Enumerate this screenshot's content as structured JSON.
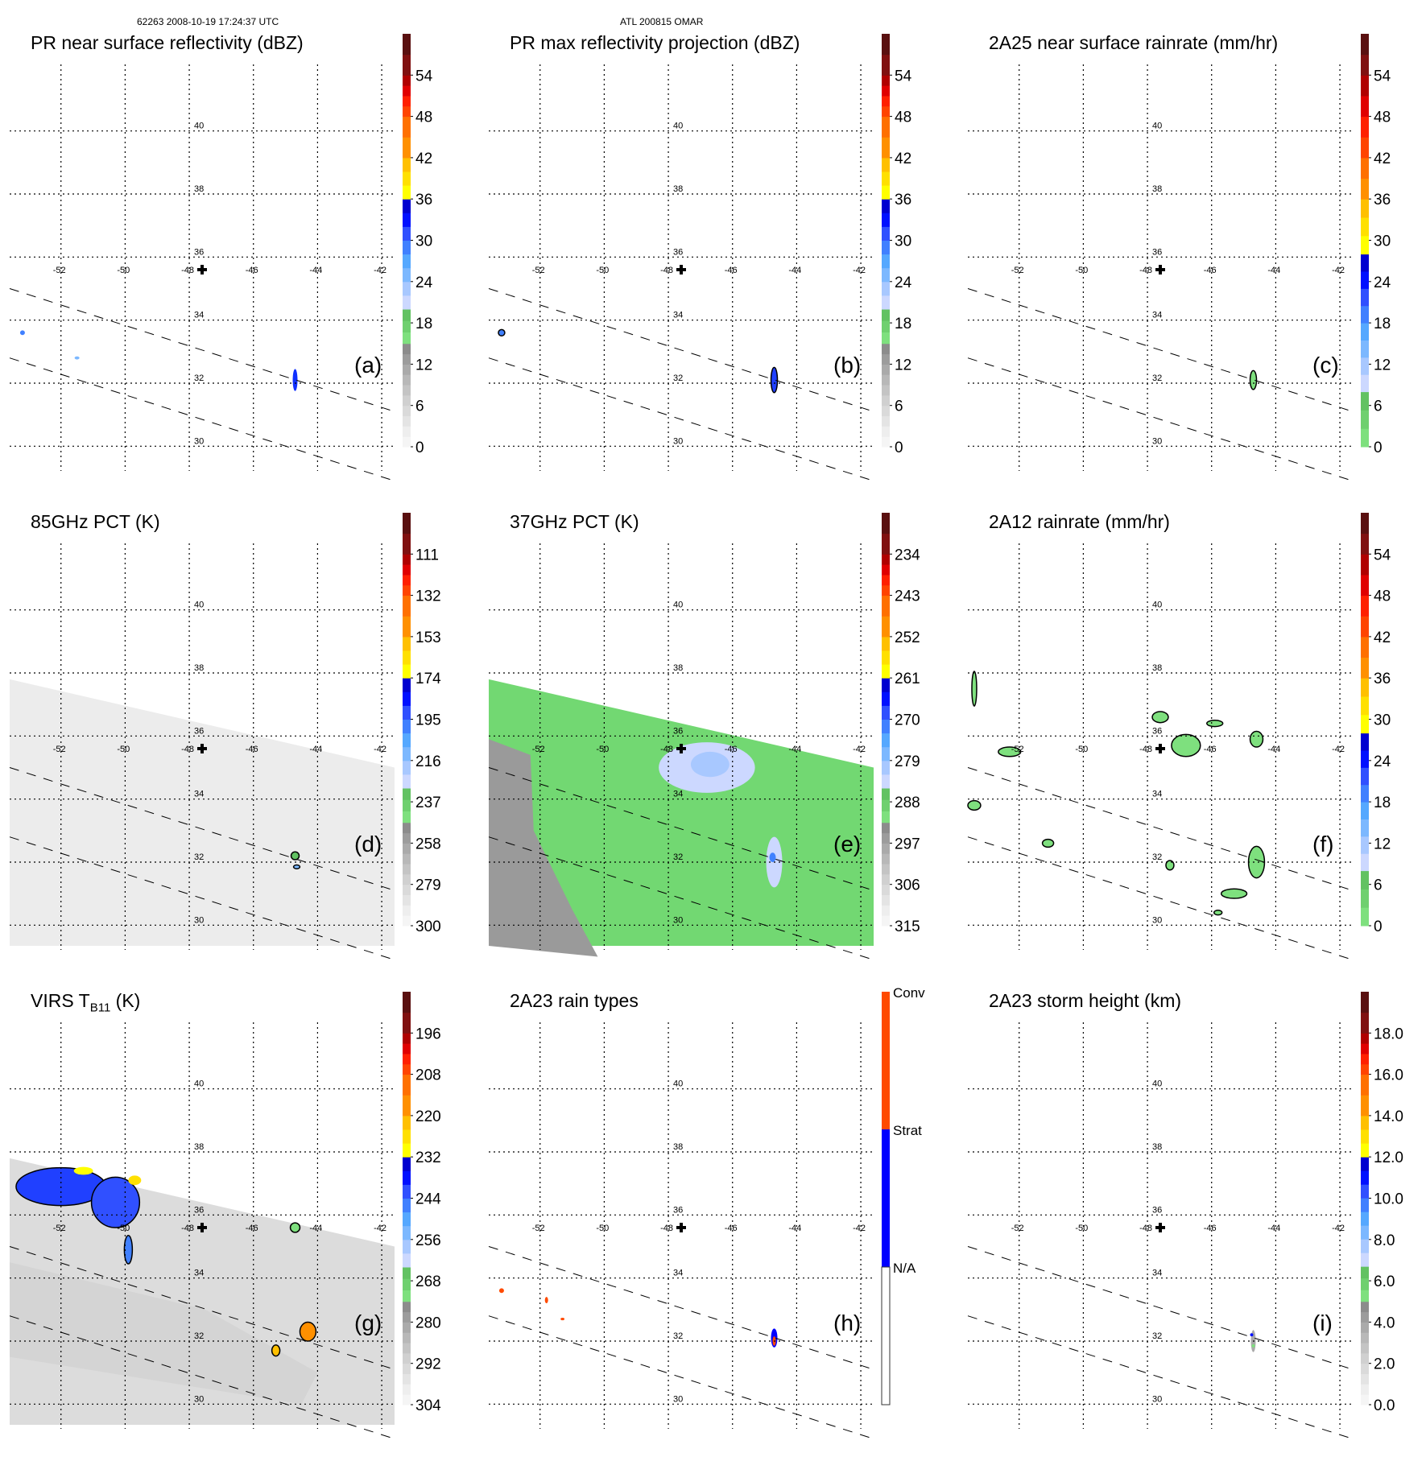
{
  "header": {
    "left": "62263 2008-10-19 17:24:37 UTC",
    "center": "ATL 200815 OMAR"
  },
  "map": {
    "lon_ticks": [
      -52,
      -50,
      -48,
      -46,
      -44,
      -42
    ],
    "lon_tick_labels": [
      "-52",
      "-50",
      "-48",
      "-46",
      "-44",
      "-42"
    ],
    "lat_ticks": [
      30,
      32,
      34,
      36,
      38,
      40
    ],
    "lat_tick_labels": [
      "30",
      "32",
      "34",
      "36",
      "38",
      "40"
    ],
    "lon_range": [
      -53.6,
      -41.6
    ],
    "lat_range": [
      29.6,
      41.6
    ],
    "storm_center": {
      "lon": -47.6,
      "lat": 35.6,
      "marker": "plus"
    },
    "swath_edges": [
      {
        "lon": [
          -53.6,
          -41.6
        ],
        "lat": [
          35.0,
          31.1
        ]
      },
      {
        "lon": [
          -53.6,
          -41.6
        ],
        "lat": [
          32.8,
          28.9
        ]
      }
    ]
  },
  "palette": {
    "dbz": [
      "#f5f5f5",
      "#eeeeee",
      "#e4e4e4",
      "#dadada",
      "#d0d0d0",
      "#c4c4c4",
      "#b8b8b8",
      "#aaaaaa",
      "#9c9c9c",
      "#8c8c8c",
      "#7ee07e",
      "#6fd06f",
      "#62c262",
      "#ccd8ff",
      "#a8c8ff",
      "#7cb8ff",
      "#55a8ff",
      "#4080ff",
      "#3050ff",
      "#0010ff",
      "#0000d0",
      "#ffff00",
      "#ffe000",
      "#ffc000",
      "#ff9000",
      "#ff7000",
      "#ff4400",
      "#ff2000",
      "#e00000",
      "#b00000",
      "#801010",
      "#5a1010"
    ],
    "conv_color": "#ff4a00",
    "strat_color": "#0000ff",
    "na_color": "#ffffff"
  },
  "panels": [
    {
      "id": "a",
      "letter": "(a)",
      "title": "PR near surface reflectivity (dBZ)",
      "colorbar": {
        "type": "continuous",
        "labels": [
          "54",
          "48",
          "42",
          "36",
          "30",
          "24",
          "18",
          "12",
          "6",
          "0"
        ],
        "range": [
          0,
          60
        ],
        "segments": [
          [
            0,
            15,
            "gray"
          ],
          [
            15,
            20,
            "green"
          ],
          [
            20,
            36,
            "blue"
          ],
          [
            36,
            42,
            "yellow"
          ],
          [
            42,
            48,
            "orange"
          ],
          [
            48,
            54,
            "red"
          ],
          [
            54,
            60,
            "darkred"
          ]
        ]
      },
      "swath": "none",
      "features": [
        {
          "lon": -44.7,
          "lat": 32.1,
          "w": 0.15,
          "h": 0.7,
          "color": "#1030ff"
        },
        {
          "lon": -53.2,
          "lat": 33.6,
          "w": 0.15,
          "h": 0.15,
          "color": "#4080ff"
        },
        {
          "lon": -51.5,
          "lat": 32.8,
          "w": 0.15,
          "h": 0.1,
          "color": "#7cb8ff"
        }
      ]
    },
    {
      "id": "b",
      "letter": "(b)",
      "title": "PR max reflectivity projection (dBZ)",
      "colorbar": {
        "type": "continuous",
        "labels": [
          "54",
          "48",
          "42",
          "36",
          "30",
          "24",
          "18",
          "12",
          "6",
          "0"
        ],
        "range": [
          0,
          60
        ],
        "segments": [
          [
            0,
            15,
            "gray"
          ],
          [
            15,
            20,
            "green"
          ],
          [
            20,
            36,
            "blue"
          ],
          [
            36,
            42,
            "yellow"
          ],
          [
            42,
            48,
            "orange"
          ],
          [
            48,
            54,
            "red"
          ],
          [
            54,
            60,
            "darkred"
          ]
        ]
      },
      "swath": "none",
      "features": [
        {
          "lon": -44.7,
          "lat": 32.1,
          "w": 0.2,
          "h": 0.8,
          "color": "#2040ff",
          "outline": true
        },
        {
          "lon": -53.2,
          "lat": 33.6,
          "w": 0.2,
          "h": 0.2,
          "color": "#4080ff",
          "outline": true
        }
      ]
    },
    {
      "id": "c",
      "letter": "(c)",
      "title": "2A25 near surface rainrate (mm/hr)",
      "colorbar": {
        "type": "continuous",
        "labels": [
          "54",
          "48",
          "42",
          "36",
          "30",
          "24",
          "18",
          "12",
          "6",
          "0"
        ],
        "range": [
          0,
          60
        ],
        "segments": [
          [
            0,
            8,
            "green"
          ],
          [
            8,
            28,
            "blue"
          ],
          [
            28,
            36,
            "yellow"
          ],
          [
            36,
            42,
            "orange"
          ],
          [
            42,
            54,
            "red"
          ],
          [
            54,
            60,
            "darkred"
          ]
        ]
      },
      "swath": "none",
      "features": [
        {
          "lon": -44.7,
          "lat": 32.1,
          "w": 0.2,
          "h": 0.6,
          "color": "#7ee07e",
          "outline": true
        }
      ]
    },
    {
      "id": "d",
      "letter": "(d)",
      "title": "85GHz PCT (K)",
      "colorbar": {
        "type": "continuous",
        "labels": [
          "111",
          "132",
          "153",
          "174",
          "195",
          "216",
          "237",
          "258",
          "279",
          "300"
        ],
        "range": [
          300,
          90
        ],
        "segments": [
          [
            0,
            15,
            "gray"
          ],
          [
            15,
            20,
            "green"
          ],
          [
            20,
            36,
            "blue"
          ],
          [
            36,
            42,
            "yellow"
          ],
          [
            42,
            48,
            "orange"
          ],
          [
            48,
            54,
            "red"
          ],
          [
            54,
            60,
            "darkred"
          ]
        ]
      },
      "swath": "gray",
      "features": [
        {
          "lon": -44.7,
          "lat": 32.2,
          "w": 0.25,
          "h": 0.25,
          "color": "#62c262",
          "outline": true
        },
        {
          "lon": -44.65,
          "lat": 31.85,
          "w": 0.2,
          "h": 0.12,
          "color": "#7cb8ff",
          "outline": true
        }
      ]
    },
    {
      "id": "e",
      "letter": "(e)",
      "title": "37GHz PCT (K)",
      "colorbar": {
        "type": "continuous",
        "labels": [
          "234",
          "243",
          "252",
          "261",
          "270",
          "279",
          "288",
          "297",
          "306",
          "315"
        ],
        "range": [
          315,
          225
        ],
        "segments": [
          [
            0,
            15,
            "gray"
          ],
          [
            15,
            20,
            "green"
          ],
          [
            20,
            36,
            "blue"
          ],
          [
            36,
            42,
            "yellow"
          ],
          [
            42,
            48,
            "orange"
          ],
          [
            48,
            54,
            "red"
          ],
          [
            54,
            60,
            "darkred"
          ]
        ]
      },
      "swath": "green",
      "features": [
        {
          "lon": -46.8,
          "lat": 35.0,
          "w": 3.0,
          "h": 1.6,
          "color": "#ccd8ff"
        },
        {
          "lon": -46.7,
          "lat": 35.1,
          "w": 1.2,
          "h": 0.8,
          "color": "#a8c8ff"
        },
        {
          "lon": -44.7,
          "lat": 32.0,
          "w": 0.5,
          "h": 1.6,
          "color": "#ccd8ff"
        },
        {
          "lon": -44.75,
          "lat": 32.15,
          "w": 0.2,
          "h": 0.3,
          "color": "#4080ff"
        }
      ]
    },
    {
      "id": "f",
      "letter": "(f)",
      "title": "2A12 rainrate (mm/hr)",
      "colorbar": {
        "type": "continuous",
        "labels": [
          "54",
          "48",
          "42",
          "36",
          "30",
          "24",
          "18",
          "12",
          "6",
          "0"
        ],
        "range": [
          0,
          60
        ],
        "segments": [
          [
            0,
            8,
            "green"
          ],
          [
            8,
            28,
            "blue"
          ],
          [
            28,
            36,
            "yellow"
          ],
          [
            36,
            42,
            "orange"
          ],
          [
            42,
            54,
            "red"
          ],
          [
            54,
            60,
            "darkred"
          ]
        ]
      },
      "swath": "none",
      "features": [
        {
          "lon": -46.8,
          "lat": 35.7,
          "w": 0.9,
          "h": 0.7,
          "color": "#7ee07e",
          "outline": true
        },
        {
          "lon": -52.3,
          "lat": 35.5,
          "w": 0.7,
          "h": 0.3,
          "color": "#7ee07e",
          "outline": true
        },
        {
          "lon": -47.6,
          "lat": 36.6,
          "w": 0.5,
          "h": 0.35,
          "color": "#7ee07e",
          "outline": true
        },
        {
          "lon": -45.9,
          "lat": 36.4,
          "w": 0.5,
          "h": 0.2,
          "color": "#7ee07e",
          "outline": true
        },
        {
          "lon": -44.6,
          "lat": 35.9,
          "w": 0.4,
          "h": 0.5,
          "color": "#7ee07e",
          "outline": true
        },
        {
          "lon": -53.4,
          "lat": 37.5,
          "w": 0.15,
          "h": 1.1,
          "color": "#7ee07e",
          "outline": true
        },
        {
          "lon": -53.4,
          "lat": 33.8,
          "w": 0.4,
          "h": 0.3,
          "color": "#7ee07e",
          "outline": true
        },
        {
          "lon": -51.1,
          "lat": 32.6,
          "w": 0.35,
          "h": 0.25,
          "color": "#7ee07e",
          "outline": true
        },
        {
          "lon": -47.3,
          "lat": 31.9,
          "w": 0.25,
          "h": 0.3,
          "color": "#7ee07e",
          "outline": true
        },
        {
          "lon": -44.6,
          "lat": 32.0,
          "w": 0.5,
          "h": 1.0,
          "color": "#7ee07e",
          "outline": true
        },
        {
          "lon": -45.3,
          "lat": 31.0,
          "w": 0.8,
          "h": 0.3,
          "color": "#7ee07e",
          "outline": true
        },
        {
          "lon": -45.8,
          "lat": 30.4,
          "w": 0.25,
          "h": 0.15,
          "color": "#7ee07e",
          "outline": true
        }
      ]
    },
    {
      "id": "g",
      "letter": "(g)",
      "title": "VIRS T",
      "title_sub": "B11",
      "title_suffix": " (K)",
      "colorbar": {
        "type": "continuous",
        "labels": [
          "196",
          "208",
          "220",
          "232",
          "244",
          "256",
          "268",
          "280",
          "292",
          "304"
        ],
        "range": [
          304,
          184
        ],
        "segments": [
          [
            0,
            15,
            "gray"
          ],
          [
            15,
            20,
            "green"
          ],
          [
            20,
            36,
            "blue"
          ],
          [
            36,
            42,
            "yellow"
          ],
          [
            42,
            48,
            "orange"
          ],
          [
            48,
            54,
            "red"
          ],
          [
            54,
            60,
            "darkred"
          ]
        ]
      },
      "swath": "virs",
      "features": [
        {
          "lon": -52.0,
          "lat": 36.9,
          "w": 2.8,
          "h": 1.2,
          "color": "#2040ff",
          "outline": true
        },
        {
          "lon": -50.3,
          "lat": 36.4,
          "w": 1.5,
          "h": 1.6,
          "color": "#3050ff",
          "outline": true
        },
        {
          "lon": -51.3,
          "lat": 37.4,
          "w": 0.6,
          "h": 0.25,
          "color": "#ffff00"
        },
        {
          "lon": -49.7,
          "lat": 37.1,
          "w": 0.4,
          "h": 0.3,
          "color": "#ffe000"
        },
        {
          "lon": -49.9,
          "lat": 34.9,
          "w": 0.25,
          "h": 0.9,
          "color": "#4080ff",
          "outline": true
        },
        {
          "lon": -44.3,
          "lat": 32.3,
          "w": 0.5,
          "h": 0.6,
          "color": "#ff9000",
          "outline": true
        },
        {
          "lon": -45.3,
          "lat": 31.7,
          "w": 0.25,
          "h": 0.35,
          "color": "#ffc000",
          "outline": true
        },
        {
          "lon": -44.7,
          "lat": 35.6,
          "w": 0.3,
          "h": 0.3,
          "color": "#7ee07e",
          "outline": true
        }
      ]
    },
    {
      "id": "h",
      "letter": "(h)",
      "title": "2A23 rain types",
      "colorbar": {
        "type": "categorical",
        "labels": [
          "Conv",
          "Strat",
          "N/A"
        ]
      },
      "swath": "none",
      "features": [
        {
          "lon": -44.7,
          "lat": 32.1,
          "w": 0.2,
          "h": 0.6,
          "color": "#0000ff"
        },
        {
          "lon": -44.7,
          "lat": 32.0,
          "w": 0.1,
          "h": 0.3,
          "color": "#ff4a00"
        },
        {
          "lon": -53.2,
          "lat": 33.6,
          "w": 0.15,
          "h": 0.15,
          "color": "#ff4a00"
        },
        {
          "lon": -51.8,
          "lat": 33.3,
          "w": 0.1,
          "h": 0.2,
          "color": "#ff4a00"
        },
        {
          "lon": -51.3,
          "lat": 32.7,
          "w": 0.12,
          "h": 0.08,
          "color": "#ff4a00"
        }
      ]
    },
    {
      "id": "i",
      "letter": "(i)",
      "title": "2A23 storm height (km)",
      "colorbar": {
        "type": "continuous",
        "labels": [
          "18.0",
          "16.0",
          "14.0",
          "12.0",
          "10.0",
          "8.0",
          "6.0",
          "4.0",
          "2.0",
          "0.0"
        ],
        "range": [
          0,
          20
        ],
        "segments": [
          [
            0,
            5,
            "gray"
          ],
          [
            5,
            6.7,
            "green"
          ],
          [
            6.7,
            12,
            "blue"
          ],
          [
            12,
            14,
            "yellow"
          ],
          [
            14,
            16,
            "orange"
          ],
          [
            16,
            18,
            "red"
          ],
          [
            18,
            20,
            "darkred"
          ]
        ]
      },
      "swath": "none",
      "features": [
        {
          "lon": -44.7,
          "lat": 32.0,
          "w": 0.15,
          "h": 0.7,
          "color": "#aaaaaa"
        },
        {
          "lon": -44.75,
          "lat": 32.2,
          "w": 0.1,
          "h": 0.1,
          "color": "#0010ff"
        },
        {
          "lon": -44.7,
          "lat": 31.85,
          "w": 0.1,
          "h": 0.1,
          "color": "#7ee07e"
        }
      ]
    }
  ]
}
